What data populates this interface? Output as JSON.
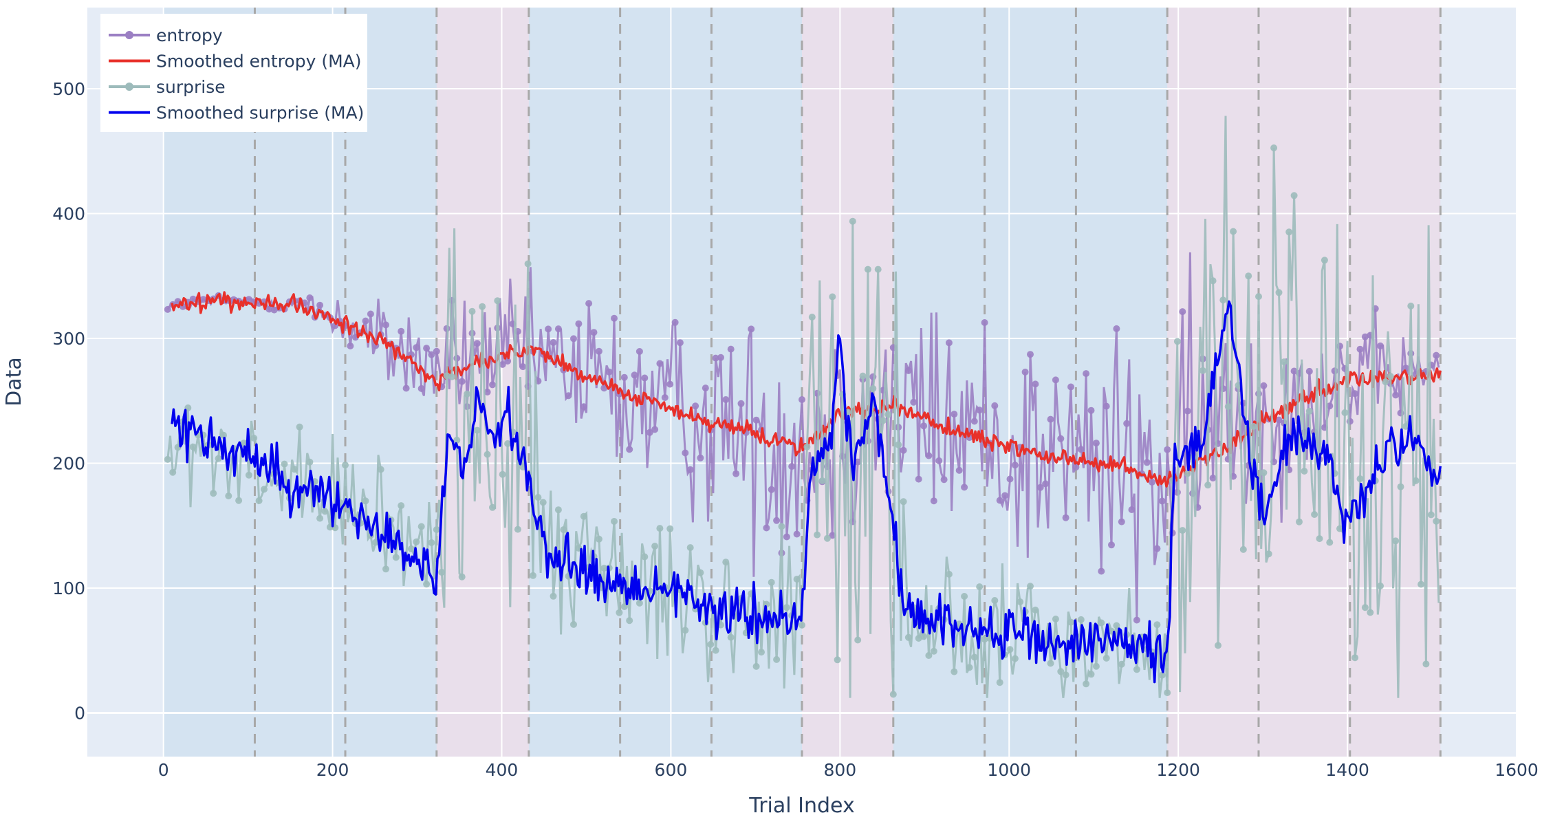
{
  "chart_data": {
    "type": "line",
    "title": "",
    "xlabel": "Trial Index",
    "ylabel": "Data",
    "xlim": [
      -90,
      1600
    ],
    "ylim": [
      -35,
      565
    ],
    "x_ticks": [
      0,
      200,
      400,
      600,
      800,
      1000,
      1200,
      1400,
      1600
    ],
    "y_ticks": [
      0,
      100,
      200,
      300,
      400,
      500
    ],
    "grid": true,
    "legend_position": "top-left",
    "colors": {
      "plot_background": "#e5ecf6",
      "grid": "#ffffff",
      "entropy": "#9b7fc3",
      "smoothed_entropy": "#e8302a",
      "surprise": "#9dbbbb",
      "smoothed_surprise": "#0000ee",
      "band_blue": "#c6dcec",
      "band_pink": "#ecd5e1",
      "boundary_line": "#a8a8a8"
    },
    "x_range": [
      5,
      1510
    ],
    "regions": [
      {
        "start": 0,
        "end": 323,
        "kind": "blue"
      },
      {
        "start": 323,
        "end": 432,
        "kind": "pink"
      },
      {
        "start": 432,
        "end": 755,
        "kind": "blue"
      },
      {
        "start": 755,
        "end": 863,
        "kind": "pink"
      },
      {
        "start": 863,
        "end": 1187,
        "kind": "blue"
      },
      {
        "start": 1187,
        "end": 1510,
        "kind": "pink"
      }
    ],
    "boundaries": [
      108,
      215,
      323,
      432,
      540,
      648,
      755,
      863,
      971,
      1079,
      1187,
      1295,
      1403,
      1510
    ],
    "series": [
      {
        "name": "entropy",
        "style": "lines+markers",
        "trend": [
          [
            5,
            326
          ],
          [
            60,
            330
          ],
          [
            150,
            328
          ],
          [
            200,
            318
          ],
          [
            260,
            295
          ],
          [
            323,
            275
          ],
          [
            380,
            287
          ],
          [
            432,
            285
          ],
          [
            500,
            268
          ],
          [
            560,
            250
          ],
          [
            650,
            232
          ],
          [
            755,
            215
          ],
          [
            800,
            238
          ],
          [
            863,
            245
          ],
          [
            950,
            225
          ],
          [
            1050,
            208
          ],
          [
            1120,
            197
          ],
          [
            1187,
            185
          ],
          [
            1250,
            235
          ],
          [
            1320,
            250
          ],
          [
            1400,
            265
          ],
          [
            1510,
            278
          ]
        ],
        "noise": [
          [
            5,
            3
          ],
          [
            150,
            5
          ],
          [
            200,
            14
          ],
          [
            260,
            24
          ],
          [
            323,
            35
          ],
          [
            432,
            38
          ],
          [
            540,
            52
          ],
          [
            755,
            68
          ],
          [
            863,
            65
          ],
          [
            1100,
            75
          ],
          [
            1187,
            80
          ],
          [
            1250,
            70
          ],
          [
            1400,
            35
          ],
          [
            1510,
            15
          ]
        ]
      },
      {
        "name": "Smoothed entropy (MA)",
        "style": "lines",
        "trend": [
          [
            10,
            325
          ],
          [
            60,
            330
          ],
          [
            150,
            328
          ],
          [
            200,
            316
          ],
          [
            260,
            298
          ],
          [
            323,
            265
          ],
          [
            380,
            282
          ],
          [
            432,
            293
          ],
          [
            500,
            270
          ],
          [
            560,
            252
          ],
          [
            650,
            232
          ],
          [
            755,
            213
          ],
          [
            800,
            240
          ],
          [
            863,
            246
          ],
          [
            950,
            222
          ],
          [
            1050,
            205
          ],
          [
            1120,
            198
          ],
          [
            1187,
            185
          ],
          [
            1250,
            210
          ],
          [
            1320,
            242
          ],
          [
            1400,
            266
          ],
          [
            1510,
            272
          ]
        ],
        "jitter": 5
      },
      {
        "name": "surprise",
        "style": "lines+markers",
        "trend": [
          [
            5,
            210
          ],
          [
            100,
            195
          ],
          [
            200,
            165
          ],
          [
            323,
            130
          ],
          [
            333,
            230
          ],
          [
            432,
            200
          ],
          [
            450,
            130
          ],
          [
            560,
            105
          ],
          [
            650,
            85
          ],
          [
            755,
            75
          ],
          [
            765,
            230
          ],
          [
            863,
            200
          ],
          [
            880,
            80
          ],
          [
            1000,
            60
          ],
          [
            1100,
            55
          ],
          [
            1187,
            45
          ],
          [
            1197,
            250
          ],
          [
            1300,
            230
          ],
          [
            1400,
            200
          ],
          [
            1510,
            200
          ]
        ],
        "noise": [
          [
            5,
            25
          ],
          [
            323,
            40
          ],
          [
            333,
            115
          ],
          [
            432,
            110
          ],
          [
            450,
            40
          ],
          [
            755,
            40
          ],
          [
            765,
            140
          ],
          [
            863,
            135
          ],
          [
            880,
            40
          ],
          [
            1187,
            30
          ],
          [
            1197,
            175
          ],
          [
            1300,
            140
          ],
          [
            1510,
            120
          ]
        ]
      },
      {
        "name": "Smoothed surprise (MA)",
        "style": "lines",
        "trend": [
          [
            10,
            232
          ],
          [
            60,
            212
          ],
          [
            100,
            205
          ],
          [
            150,
            185
          ],
          [
            200,
            165
          ],
          [
            260,
            145
          ],
          [
            323,
            108
          ],
          [
            335,
            215
          ],
          [
            360,
            195
          ],
          [
            370,
            265
          ],
          [
            390,
            215
          ],
          [
            405,
            240
          ],
          [
            432,
            195
          ],
          [
            450,
            130
          ],
          [
            500,
            110
          ],
          [
            560,
            103
          ],
          [
            600,
            98
          ],
          [
            650,
            85
          ],
          [
            755,
            70
          ],
          [
            765,
            200
          ],
          [
            790,
            215
          ],
          [
            800,
            300
          ],
          [
            815,
            190
          ],
          [
            840,
            260
          ],
          [
            855,
            180
          ],
          [
            863,
            160
          ],
          [
            875,
            80
          ],
          [
            950,
            70
          ],
          [
            1000,
            63
          ],
          [
            1100,
            58
          ],
          [
            1187,
            45
          ],
          [
            1195,
            200
          ],
          [
            1230,
            220
          ],
          [
            1260,
            330
          ],
          [
            1280,
            230
          ],
          [
            1300,
            150
          ],
          [
            1330,
            220
          ],
          [
            1370,
            215
          ],
          [
            1400,
            150
          ],
          [
            1440,
            200
          ],
          [
            1480,
            220
          ],
          [
            1500,
            200
          ],
          [
            1510,
            190
          ]
        ],
        "jitter": 14
      }
    ]
  }
}
